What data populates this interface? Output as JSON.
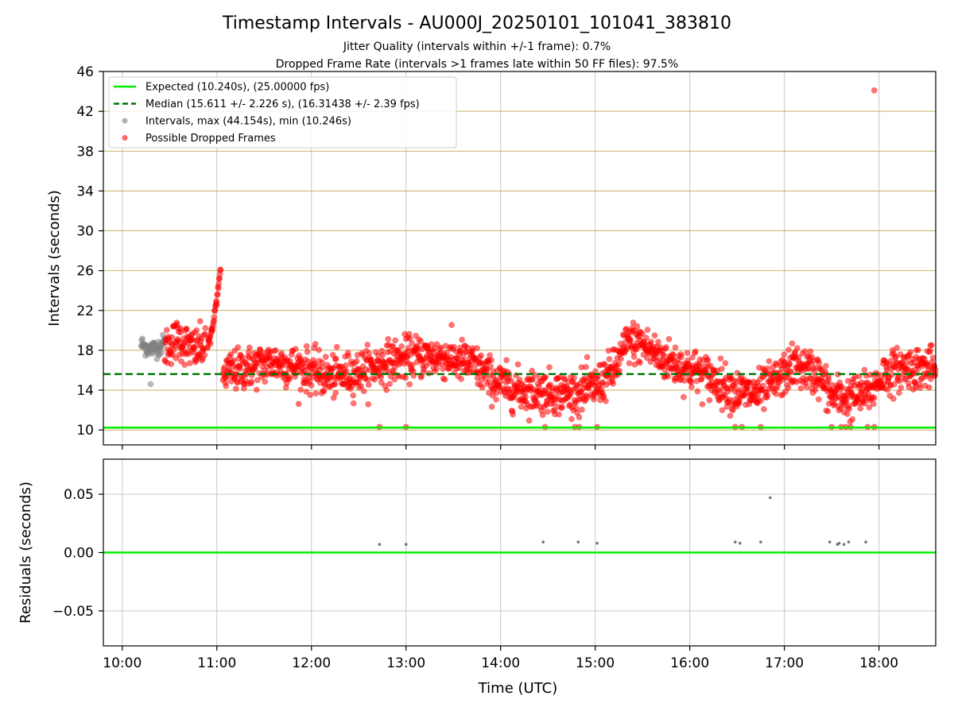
{
  "title": "Timestamp Intervals - AU000J_20250101_101041_383810",
  "subtitle_lines": [
    "Jitter Quality (intervals within +/-1 frame): 0.7%",
    "Dropped Frame Rate (intervals >1 frames late within 50 FF files): 97.5%"
  ],
  "colors": {
    "expected": "#00ee00",
    "median": "#007700",
    "intervals": "#808080",
    "dropped": "#ff0000",
    "hgrid_top": "#c8b060",
    "grid": "#c8c8c8"
  },
  "chart_data": [
    {
      "type": "scatter",
      "ylabel": "Intervals (seconds)",
      "ylim": [
        8.5,
        46
      ],
      "yticks": [
        10,
        14,
        18,
        22,
        26,
        30,
        34,
        38,
        42,
        46
      ],
      "xlim_hours": [
        9.8,
        18.6
      ],
      "xticks_hours": [
        10,
        11,
        12,
        13,
        14,
        15,
        16,
        17,
        18
      ],
      "xtick_labels": [
        "10:00",
        "11:00",
        "12:00",
        "13:00",
        "14:00",
        "15:00",
        "16:00",
        "17:00",
        "18:00"
      ],
      "grid": true,
      "legend_position": "top-left",
      "legend": [
        {
          "label": "Expected (10.240s), (25.00000 fps)",
          "kind": "solid-line",
          "color": "#00ee00"
        },
        {
          "label": "Median (15.611 +/- 2.226 s), (16.31438 +/- 2.39 fps)",
          "kind": "dashed-line",
          "color": "#007700"
        },
        {
          "label": "Intervals, max (44.154s), min (10.246s)",
          "kind": "marker",
          "color": "#808080"
        },
        {
          "label": "Possible Dropped Frames",
          "kind": "marker",
          "color": "#ff0000"
        }
      ],
      "expected_interval": 10.24,
      "median_interval": 15.611,
      "series": [
        {
          "name": "Intervals, max (44.154s), min (10.246s)",
          "trend": [
            [
              10.2,
              18.6
            ],
            [
              10.3,
              18.1
            ],
            [
              10.4,
              18.4
            ],
            [
              10.45,
              18.8
            ]
          ],
          "spread": 0.9,
          "extra_points": [
            [
              10.3,
              14.6
            ]
          ]
        },
        {
          "name": "Possible Dropped Frames",
          "trend": [
            [
              10.45,
              18.3
            ],
            [
              10.6,
              19.2
            ],
            [
              10.75,
              18.0
            ],
            [
              10.85,
              18.4
            ],
            [
              11.05,
              15.6
            ],
            [
              11.3,
              16.2
            ],
            [
              11.6,
              16.8
            ],
            [
              11.9,
              16.2
            ],
            [
              12.2,
              15.3
            ],
            [
              12.5,
              15.8
            ],
            [
              12.8,
              16.8
            ],
            [
              13.1,
              17.4
            ],
            [
              13.4,
              17.3
            ],
            [
              13.7,
              16.6
            ],
            [
              13.95,
              14.8
            ],
            [
              14.2,
              14.0
            ],
            [
              14.5,
              13.8
            ],
            [
              14.8,
              13.6
            ],
            [
              15.0,
              14.3
            ],
            [
              15.2,
              16.0
            ],
            [
              15.35,
              18.9
            ],
            [
              15.5,
              18.6
            ],
            [
              15.7,
              17.2
            ],
            [
              15.9,
              16.4
            ],
            [
              16.1,
              15.8
            ],
            [
              16.3,
              14.8
            ],
            [
              16.5,
              13.8
            ],
            [
              16.7,
              13.6
            ],
            [
              16.9,
              14.8
            ],
            [
              17.1,
              16.5
            ],
            [
              17.35,
              15.6
            ],
            [
              17.5,
              13.4
            ],
            [
              17.7,
              13.2
            ],
            [
              17.9,
              13.8
            ],
            [
              18.05,
              15.6
            ],
            [
              18.3,
              16.3
            ],
            [
              18.6,
              16.2
            ]
          ],
          "spread": 1.4,
          "ramp": [
            [
              10.9,
              18.2
            ],
            [
              10.96,
              20.5
            ],
            [
              11.0,
              23.2
            ],
            [
              11.04,
              26.3
            ]
          ],
          "extra_points": [
            [
              17.95,
              44.1
            ],
            [
              12.72,
              10.3
            ],
            [
              13.0,
              10.3
            ],
            [
              14.47,
              10.3
            ],
            [
              14.83,
              10.3
            ],
            [
              15.02,
              10.3
            ],
            [
              16.48,
              10.3
            ],
            [
              16.55,
              10.3
            ],
            [
              16.75,
              10.3
            ],
            [
              17.5,
              10.3
            ],
            [
              17.6,
              10.3
            ],
            [
              17.65,
              10.3
            ],
            [
              17.7,
              10.3
            ],
            [
              17.88,
              10.3
            ],
            [
              17.95,
              10.3
            ]
          ]
        }
      ]
    },
    {
      "type": "scatter",
      "ylabel": "Residuals (seconds)",
      "xlabel": "Time (UTC)",
      "ylim": [
        -0.08,
        0.08
      ],
      "yticks": [
        -0.05,
        0.0,
        0.05
      ],
      "ytick_labels": [
        "−0.05",
        "0.00",
        "0.05"
      ],
      "xlim_hours": [
        9.8,
        18.6
      ],
      "xticks_hours": [
        10,
        11,
        12,
        13,
        14,
        15,
        16,
        17,
        18
      ],
      "xtick_labels": [
        "10:00",
        "11:00",
        "12:00",
        "13:00",
        "14:00",
        "15:00",
        "16:00",
        "17:00",
        "18:00"
      ],
      "grid": true,
      "zero_line": 0.0,
      "points": [
        [
          12.72,
          0.007
        ],
        [
          13.0,
          0.007
        ],
        [
          14.45,
          0.009
        ],
        [
          14.82,
          0.009
        ],
        [
          15.02,
          0.008
        ],
        [
          16.48,
          0.009
        ],
        [
          16.53,
          0.008
        ],
        [
          16.75,
          0.009
        ],
        [
          16.85,
          0.047
        ],
        [
          17.48,
          0.009
        ],
        [
          17.56,
          0.007
        ],
        [
          17.58,
          0.008
        ],
        [
          17.63,
          0.007
        ],
        [
          17.68,
          0.009
        ],
        [
          17.86,
          0.009
        ]
      ]
    }
  ]
}
